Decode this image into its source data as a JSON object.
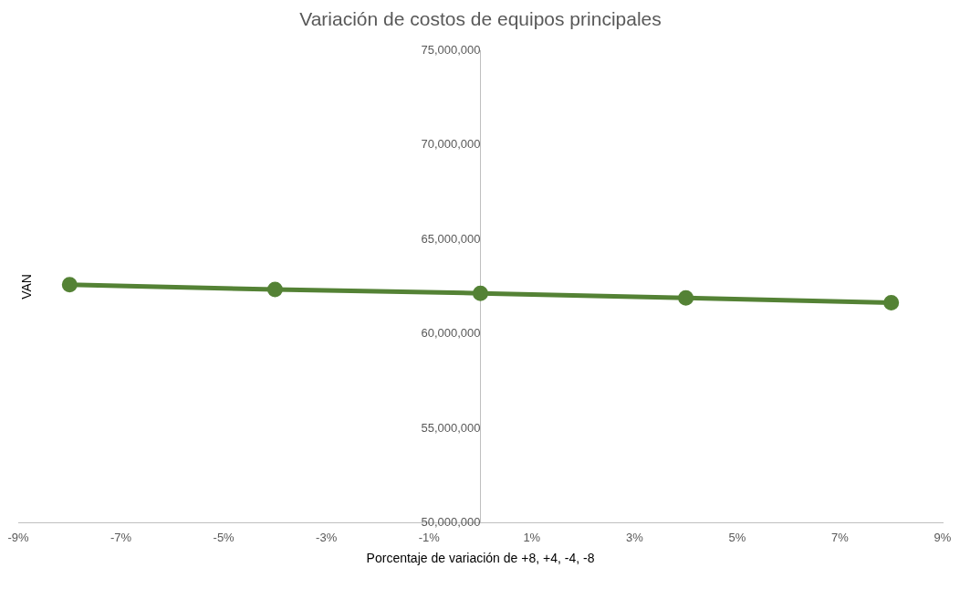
{
  "chart_data": {
    "type": "line",
    "title": "Variación de costos de equipos principales",
    "xlabel": "Porcentaje de variación de +8, +4, -4, -8",
    "ylabel": "VAN",
    "x": [
      -8,
      -4,
      0,
      4,
      8
    ],
    "series": [
      {
        "color": "#548235",
        "values": [
          62600000,
          62350000,
          62150000,
          61900000,
          61650000
        ]
      }
    ],
    "xlim": [
      -9,
      9
    ],
    "xticks": [
      {
        "value": -9,
        "label": "-9%"
      },
      {
        "value": -7,
        "label": "-7%"
      },
      {
        "value": -5,
        "label": "-5%"
      },
      {
        "value": -3,
        "label": "-3%"
      },
      {
        "value": -1,
        "label": "-1%"
      },
      {
        "value": 1,
        "label": "1%"
      },
      {
        "value": 3,
        "label": "3%"
      },
      {
        "value": 5,
        "label": "5%"
      },
      {
        "value": 7,
        "label": "7%"
      },
      {
        "value": 9,
        "label": "9%"
      }
    ],
    "ylim": [
      50000000,
      75000000
    ],
    "yticks": [
      {
        "value": 50000000,
        "label": "50,000,000"
      },
      {
        "value": 55000000,
        "label": "55,000,000"
      },
      {
        "value": 60000000,
        "label": "60,000,000"
      },
      {
        "value": 65000000,
        "label": "65,000,000"
      },
      {
        "value": 70000000,
        "label": "70,000,000"
      },
      {
        "value": 75000000,
        "label": "75,000,000"
      }
    ],
    "grid": false,
    "legend": false,
    "marker": "circle",
    "line_style": "solid"
  }
}
